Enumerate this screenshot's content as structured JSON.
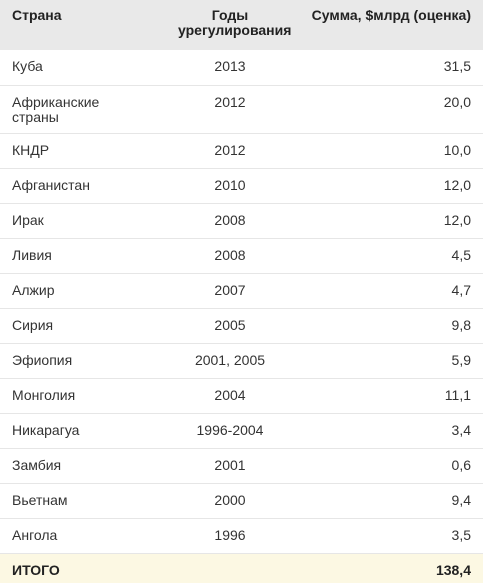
{
  "table": {
    "headers": [
      "Страна",
      "Годы урегулирования",
      "Сумма, $млрд (оценка)"
    ],
    "rows": [
      [
        "Куба",
        "2013",
        "31,5"
      ],
      [
        "Африканские страны",
        "2012",
        "20,0"
      ],
      [
        "КНДР",
        "2012",
        "10,0"
      ],
      [
        "Афганистан",
        "2010",
        "12,0"
      ],
      [
        "Ирак",
        "2008",
        "12,0"
      ],
      [
        "Ливия",
        "2008",
        "4,5"
      ],
      [
        "Алжир",
        "2007",
        "4,7"
      ],
      [
        "Сирия",
        "2005",
        "9,8"
      ],
      [
        "Эфиопия",
        "2001, 2005",
        "5,9"
      ],
      [
        "Монголия",
        "2004",
        "11,1"
      ],
      [
        "Никарагуа",
        "1996-2004",
        "3,4"
      ],
      [
        "Замбия",
        "2001",
        "0,6"
      ],
      [
        "Вьетнам",
        "2000",
        "9,4"
      ],
      [
        "Ангола",
        "1996",
        "3,5"
      ]
    ],
    "total": {
      "label": "ИТОГО",
      "value": "138,4"
    }
  },
  "colors": {
    "header_bg": "#e9e9e9",
    "total_bg": "#fcf8e3",
    "row_border": "#e6e6e6"
  }
}
